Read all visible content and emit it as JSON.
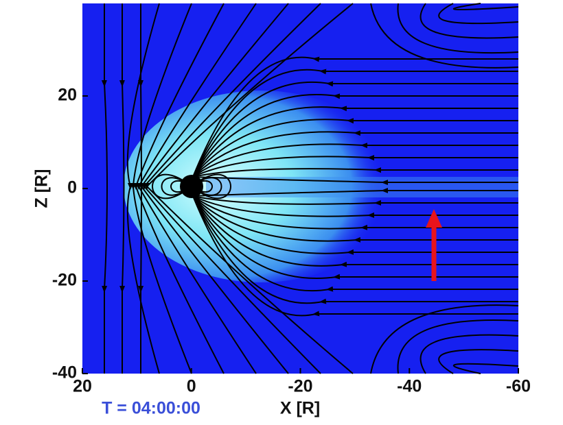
{
  "chart_data": {
    "type": "field",
    "xlabel": "X [R]",
    "ylabel": "Z [R]",
    "annotation": "T = 04:00:00",
    "xlim": [
      20,
      -60
    ],
    "ylim": [
      -40,
      40
    ],
    "xticks": [
      20,
      0,
      -20,
      -40,
      -60
    ],
    "yticks": [
      20,
      0,
      -20,
      -40
    ]
  }
}
